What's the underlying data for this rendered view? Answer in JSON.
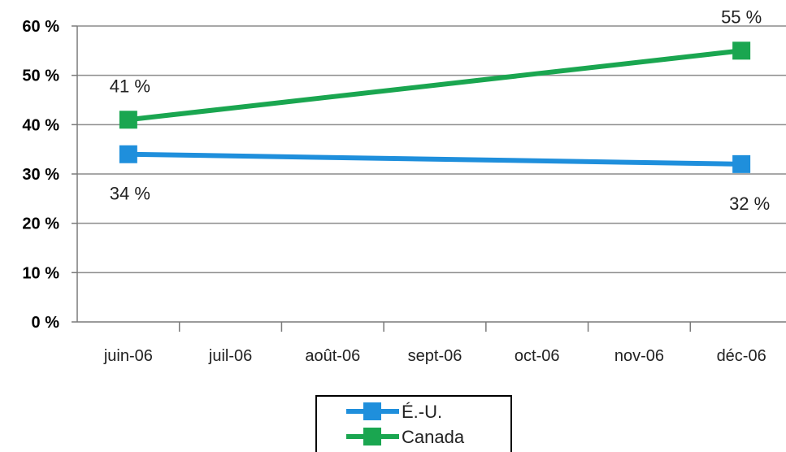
{
  "chart_data": {
    "type": "line",
    "title": "",
    "xlabel": "",
    "ylabel": "",
    "categories": [
      "juin-06",
      "juil-06",
      "août-06",
      "sept-06",
      "oct-06",
      "nov-06",
      "déc-06"
    ],
    "ylim": [
      0,
      60
    ],
    "yticks": [
      "0 %",
      "10 %",
      "20 %",
      "30 %",
      "40 %",
      "50 %",
      "60 %"
    ],
    "grid": true,
    "legend_position": "bottom",
    "series": [
      {
        "name": "É.-U.",
        "color": "#1f8fdc",
        "marker": "square",
        "points": [
          {
            "category": "juin-06",
            "value": 34,
            "label": "34 %"
          },
          {
            "category": "déc-06",
            "value": 32,
            "label": "32 %"
          }
        ]
      },
      {
        "name": "Canada",
        "color": "#1aa650",
        "marker": "square",
        "points": [
          {
            "category": "juin-06",
            "value": 41,
            "label": "41 %"
          },
          {
            "category": "déc-06",
            "value": 55,
            "label": "55 %"
          }
        ]
      }
    ]
  }
}
